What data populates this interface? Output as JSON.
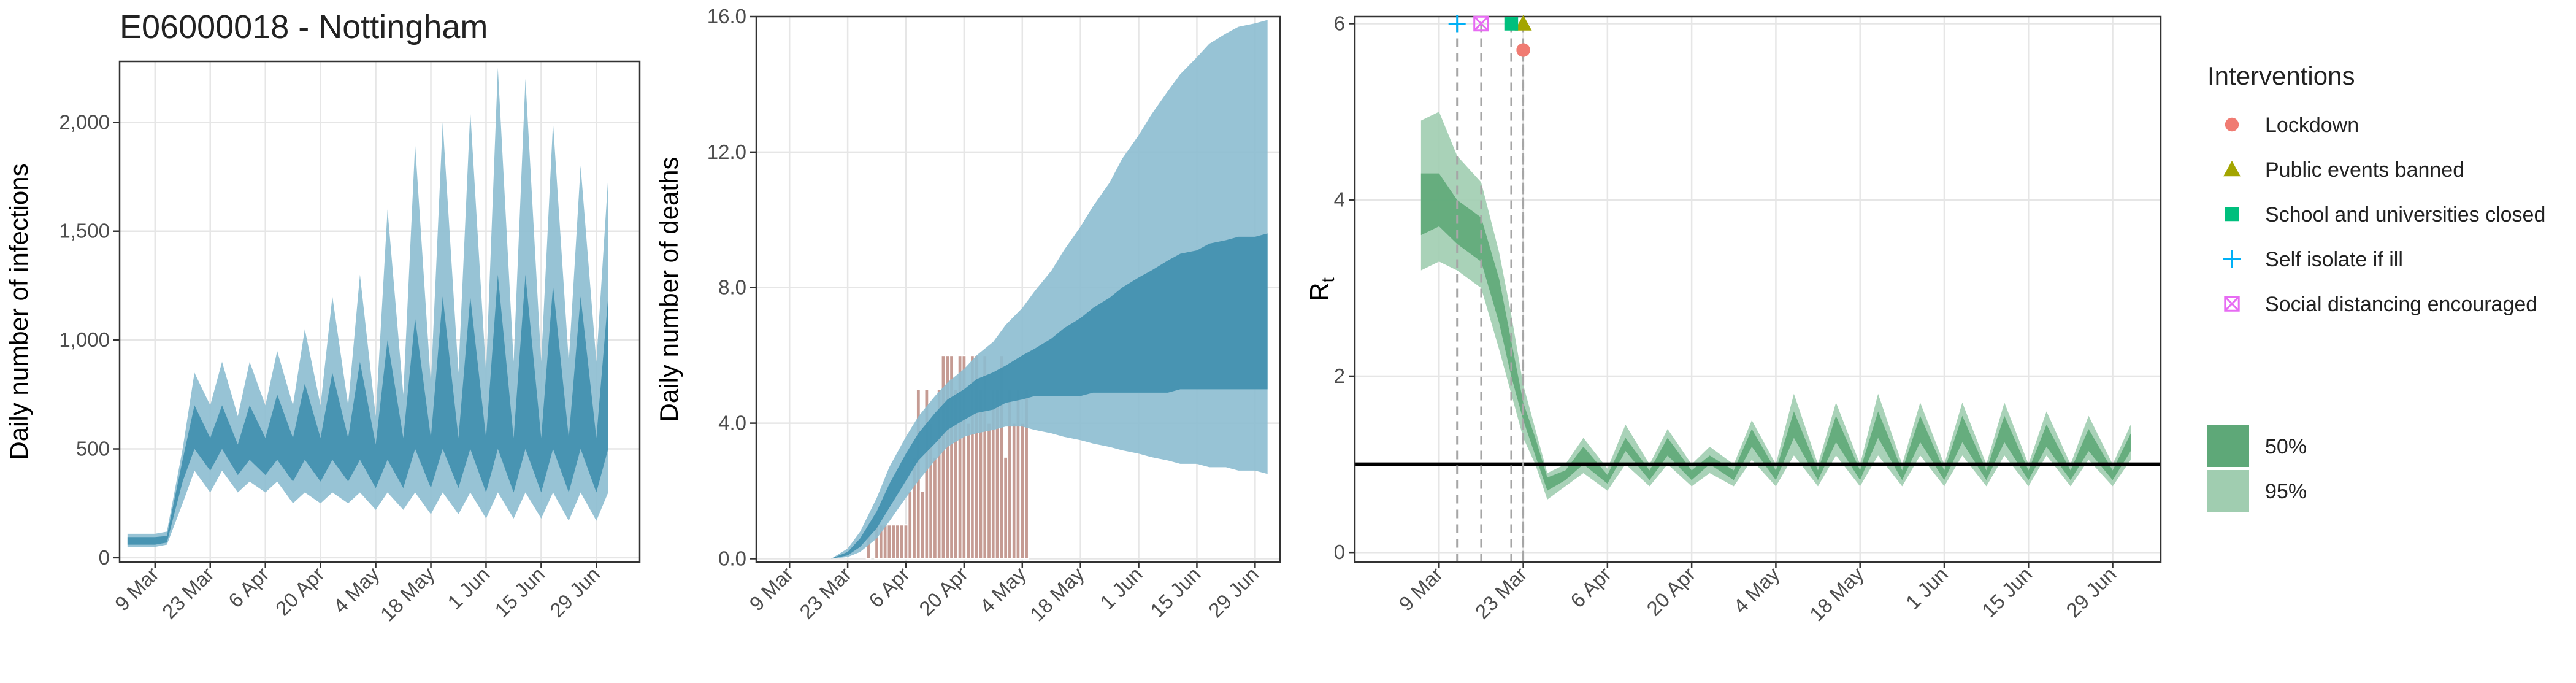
{
  "chart_data": [
    {
      "type": "area",
      "title": "E06000018 - Nottingham",
      "y_label": "Daily number of infections",
      "x": [
        "2 Mar",
        "5 Mar",
        "9 Mar",
        "12 Mar",
        "16 Mar",
        "19 Mar",
        "23 Mar",
        "26 Mar",
        "30 Mar",
        "2 Apr",
        "6 Apr",
        "9 Apr",
        "13 Apr",
        "16 Apr",
        "20 Apr",
        "23 Apr",
        "27 Apr",
        "30 Apr",
        "4 May",
        "7 May",
        "11 May",
        "14 May",
        "18 May",
        "21 May",
        "25 May",
        "28 May",
        "1 Jun",
        "4 Jun",
        "8 Jun",
        "11 Jun",
        "15 Jun",
        "18 Jun",
        "22 Jun",
        "25 Jun",
        "29 Jun",
        "2 Jul"
      ],
      "xlim": [
        "29 Feb",
        "10 Jul"
      ],
      "xticks": [
        "9 Mar",
        "23 Mar",
        "6 Apr",
        "20 Apr",
        "4 May",
        "18 May",
        "1 Jun",
        "15 Jun",
        "29 Jun"
      ],
      "ylim": [
        -20,
        2280
      ],
      "yticks": [
        0,
        500,
        {
          "value": 1000,
          "label": "1,000"
        },
        {
          "value": 1500,
          "label": "1,500"
        },
        {
          "value": 2000,
          "label": "2,000"
        }
      ],
      "grid": true,
      "bands": [
        {
          "color": "#8cbdd0",
          "lower": [
            50,
            50,
            50,
            60,
            250,
            400,
            300,
            400,
            300,
            350,
            300,
            350,
            250,
            300,
            250,
            300,
            250,
            300,
            220,
            300,
            220,
            300,
            200,
            300,
            200,
            300,
            180,
            300,
            180,
            300,
            180,
            300,
            170,
            300,
            170,
            300
          ],
          "upper": [
            110,
            110,
            110,
            120,
            500,
            850,
            700,
            900,
            650,
            900,
            700,
            950,
            700,
            1050,
            700,
            1200,
            700,
            1300,
            650,
            1600,
            750,
            1900,
            800,
            2000,
            850,
            2050,
            850,
            2250,
            900,
            2200,
            900,
            2000,
            900,
            1800,
            900,
            1750
          ]
        },
        {
          "color": "#3f8fae",
          "lower": [
            60,
            60,
            60,
            70,
            350,
            500,
            400,
            500,
            380,
            450,
            380,
            450,
            350,
            450,
            350,
            450,
            350,
            450,
            320,
            450,
            320,
            500,
            320,
            500,
            320,
            500,
            300,
            500,
            300,
            500,
            300,
            500,
            300,
            500,
            300,
            500
          ],
          "upper": [
            95,
            95,
            95,
            100,
            450,
            700,
            550,
            700,
            520,
            700,
            550,
            750,
            550,
            800,
            550,
            850,
            550,
            900,
            520,
            1000,
            550,
            1100,
            550,
            1200,
            550,
            1200,
            550,
            1300,
            550,
            1300,
            550,
            1250,
            550,
            1200,
            550,
            1200
          ]
        }
      ]
    },
    {
      "type": "bar",
      "y_label": "Daily number of deaths",
      "x": [
        "2 Mar",
        "5 Mar",
        "9 Mar",
        "12 Mar",
        "16 Mar",
        "19 Mar",
        "23 Mar",
        "26 Mar",
        "30 Mar",
        "2 Apr",
        "6 Apr",
        "9 Apr",
        "13 Apr",
        "16 Apr",
        "20 Apr",
        "23 Apr",
        "27 Apr",
        "30 Apr",
        "4 May",
        "7 May",
        "11 May",
        "14 May",
        "18 May",
        "21 May",
        "25 May",
        "28 May",
        "1 Jun",
        "4 Jun",
        "8 Jun",
        "11 Jun",
        "15 Jun",
        "18 Jun",
        "22 Jun",
        "25 Jun",
        "29 Jun",
        "2 Jul"
      ],
      "xlim": [
        "1 Mar",
        "5 Jul"
      ],
      "xticks": [
        "9 Mar",
        "23 Mar",
        "6 Apr",
        "20 Apr",
        "4 May",
        "18 May",
        "1 Jun",
        "15 Jun",
        "29 Jun"
      ],
      "ylim": [
        -0.1,
        16
      ],
      "yticks": [
        {
          "value": 0,
          "label": "0.0"
        },
        {
          "value": 4,
          "label": "4.0"
        },
        {
          "value": 8,
          "label": "8.0"
        },
        {
          "value": 12,
          "label": "12.0"
        },
        {
          "value": 16,
          "label": "16.0"
        }
      ],
      "grid": true,
      "bars": {
        "color": "#c59b93",
        "x": [
          "27 Mar",
          "28 Mar",
          "29 Mar",
          "30 Mar",
          "31 Mar",
          "1 Apr",
          "2 Apr",
          "3 Apr",
          "4 Apr",
          "5 Apr",
          "6 Apr",
          "7 Apr",
          "8 Apr",
          "9 Apr",
          "10 Apr",
          "11 Apr",
          "12 Apr",
          "13 Apr",
          "14 Apr",
          "15 Apr",
          "16 Apr",
          "17 Apr",
          "18 Apr",
          "19 Apr",
          "20 Apr",
          "21 Apr",
          "22 Apr",
          "23 Apr",
          "24 Apr",
          "25 Apr",
          "26 Apr",
          "27 Apr",
          "28 Apr",
          "29 Apr",
          "30 Apr",
          "1 May",
          "2 May",
          "3 May",
          "4 May",
          "5 May",
          "6 May",
          "7 May"
        ],
        "values": [
          0,
          1,
          0,
          1,
          1,
          1,
          1,
          1,
          1,
          1,
          1,
          2,
          3,
          5,
          2,
          5,
          4,
          3,
          5,
          6,
          6,
          6,
          5,
          6,
          6,
          4,
          6,
          6,
          5,
          6,
          4,
          5,
          5,
          6,
          3,
          5,
          4,
          5,
          4,
          5,
          0,
          0
        ]
      },
      "bands": [
        {
          "color": "#8cbdd0",
          "lower": [
            0,
            0,
            0,
            0,
            0,
            0,
            0.05,
            0.2,
            0.6,
            1.1,
            1.8,
            2.3,
            2.9,
            3.3,
            3.6,
            3.7,
            3.8,
            3.9,
            3.9,
            3.8,
            3.7,
            3.6,
            3.5,
            3.4,
            3.3,
            3.2,
            3.1,
            3.0,
            2.9,
            2.8,
            2.8,
            2.7,
            2.7,
            2.6,
            2.6,
            2.5
          ],
          "upper": [
            0,
            0,
            0,
            0,
            0,
            0,
            0.3,
            0.8,
            1.8,
            2.7,
            3.6,
            4.2,
            4.8,
            5.2,
            5.6,
            6.0,
            6.4,
            6.9,
            7.4,
            7.9,
            8.5,
            9.1,
            9.8,
            10.4,
            11.1,
            11.8,
            12.5,
            13.1,
            13.8,
            14.3,
            14.8,
            15.2,
            15.5,
            15.7,
            15.8,
            15.9
          ]
        },
        {
          "color": "#3f8fae",
          "lower": [
            0,
            0,
            0,
            0,
            0,
            0,
            0.1,
            0.35,
            0.9,
            1.5,
            2.3,
            2.9,
            3.4,
            3.8,
            4.1,
            4.3,
            4.4,
            4.6,
            4.7,
            4.8,
            4.8,
            4.8,
            4.8,
            4.9,
            4.9,
            4.9,
            4.9,
            4.9,
            4.9,
            5.0,
            5.0,
            5.0,
            5.0,
            5.0,
            5.0,
            5.0
          ],
          "upper": [
            0,
            0,
            0,
            0,
            0,
            0,
            0.2,
            0.6,
            1.4,
            2.2,
            3.1,
            3.7,
            4.3,
            4.7,
            5.0,
            5.3,
            5.5,
            5.7,
            6.0,
            6.2,
            6.5,
            6.8,
            7.1,
            7.4,
            7.7,
            8.0,
            8.3,
            8.5,
            8.8,
            9.0,
            9.1,
            9.3,
            9.4,
            9.5,
            9.5,
            9.6
          ]
        }
      ]
    },
    {
      "type": "area",
      "y_label": "R",
      "y_label_subscript": "t",
      "x": [
        "6 Mar",
        "9 Mar",
        "12 Mar",
        "16 Mar",
        "19 Mar",
        "21 Mar",
        "23 Mar",
        "25 Mar",
        "27 Mar",
        "30 Mar",
        "2 Apr",
        "6 Apr",
        "9 Apr",
        "13 Apr",
        "16 Apr",
        "20 Apr",
        "23 Apr",
        "27 Apr",
        "30 Apr",
        "4 May",
        "7 May",
        "11 May",
        "14 May",
        "18 May",
        "21 May",
        "25 May",
        "28 May",
        "1 Jun",
        "4 Jun",
        "8 Jun",
        "11 Jun",
        "15 Jun",
        "18 Jun",
        "22 Jun",
        "25 Jun",
        "29 Jun",
        "2 Jul"
      ],
      "xlim": [
        "24 Feb",
        "7 Jul"
      ],
      "xticks": [
        "9 Mar",
        "23 Mar",
        "6 Apr",
        "20 Apr",
        "4 May",
        "18 May",
        "1 Jun",
        "15 Jun",
        "29 Jun"
      ],
      "ylim": [
        -0.11,
        6.08
      ],
      "yticks": [
        0,
        2,
        4,
        6
      ],
      "grid": true,
      "hline": 1,
      "bands": [
        {
          "name": "95%",
          "color": "#a0cdb0",
          "lower": [
            3.2,
            3.3,
            3.2,
            3.0,
            2.3,
            1.8,
            1.3,
            1.0,
            0.6,
            0.75,
            0.9,
            0.7,
            1.0,
            0.75,
            1.0,
            0.75,
            0.9,
            0.75,
            1.05,
            0.75,
            1.1,
            0.75,
            1.1,
            0.75,
            1.1,
            0.75,
            1.1,
            0.75,
            1.1,
            0.75,
            1.1,
            0.75,
            1.1,
            0.75,
            1.05,
            0.75,
            1.05
          ],
          "upper": [
            4.9,
            5.0,
            4.5,
            4.2,
            3.4,
            2.7,
            1.9,
            1.4,
            0.9,
            1.0,
            1.3,
            0.95,
            1.45,
            1.0,
            1.4,
            1.0,
            1.2,
            1.0,
            1.5,
            1.0,
            1.8,
            1.0,
            1.7,
            1.0,
            1.8,
            1.0,
            1.7,
            1.0,
            1.7,
            1.0,
            1.7,
            1.0,
            1.6,
            1.0,
            1.55,
            1.0,
            1.45
          ]
        },
        {
          "name": "50%",
          "color": "#5ea878",
          "lower": [
            3.6,
            3.7,
            3.5,
            3.3,
            2.6,
            2.0,
            1.5,
            1.1,
            0.7,
            0.82,
            1.0,
            0.78,
            1.15,
            0.82,
            1.1,
            0.82,
            1.0,
            0.82,
            1.2,
            0.82,
            1.3,
            0.82,
            1.25,
            0.82,
            1.3,
            0.82,
            1.25,
            0.82,
            1.25,
            0.82,
            1.25,
            0.82,
            1.2,
            0.82,
            1.15,
            0.82,
            1.15
          ],
          "upper": [
            4.3,
            4.3,
            4.0,
            3.8,
            3.1,
            2.4,
            1.7,
            1.3,
            0.85,
            0.93,
            1.2,
            0.88,
            1.3,
            0.93,
            1.3,
            0.93,
            1.1,
            0.93,
            1.4,
            0.93,
            1.6,
            0.93,
            1.55,
            0.93,
            1.6,
            0.93,
            1.55,
            0.93,
            1.55,
            0.93,
            1.55,
            0.93,
            1.45,
            0.93,
            1.4,
            0.93,
            1.35
          ]
        }
      ],
      "legend_title": "Interventions",
      "interventions": [
        {
          "name": "Lockdown",
          "date": "23 Mar",
          "y": 5.7,
          "color": "#f07b72",
          "shape": "circle"
        },
        {
          "name": "Public events banned",
          "date": "23 Mar",
          "y": 6,
          "color": "#a3a500",
          "shape": "triangle"
        },
        {
          "name": "School and universities closed",
          "date": "21 Mar",
          "y": 6,
          "color": "#00bf7d",
          "shape": "square"
        },
        {
          "name": "Self isolate if ill",
          "date": "12 Mar",
          "y": 6,
          "color": "#00b0f6",
          "shape": "plus"
        },
        {
          "name": "Social distancing encouraged",
          "date": "16 Mar",
          "y": 6,
          "color": "#e76bf3",
          "shape": "square-cross"
        }
      ]
    }
  ]
}
